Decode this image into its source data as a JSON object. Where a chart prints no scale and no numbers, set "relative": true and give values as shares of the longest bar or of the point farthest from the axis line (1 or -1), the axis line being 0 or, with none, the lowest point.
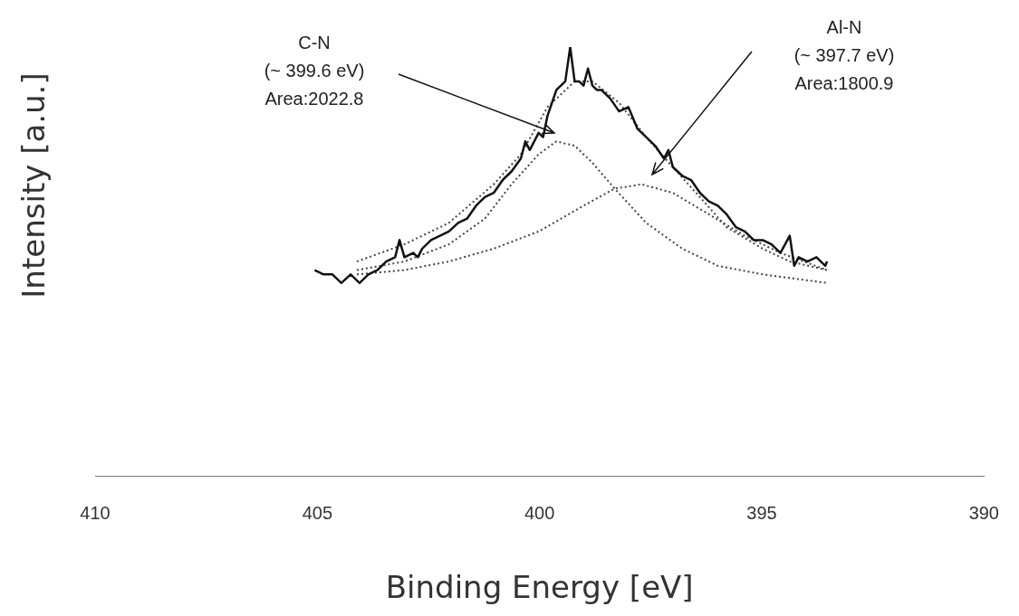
{
  "chart_data": {
    "type": "line",
    "relative": true,
    "xlabel": "Binding Energy [eV]",
    "ylabel": "Intensity [a.u.]",
    "xlim": [
      410,
      390
    ],
    "xticks": [
      410,
      405,
      400,
      395,
      390
    ],
    "grid": false,
    "legend": false,
    "annotations": [
      "C-N\n(~ 399.6 eV)\nArea:2022.8",
      "Al-N\n(~ 397.7 eV)\nArea:1800.9"
    ],
    "series": [
      {
        "color": "#111111",
        "line_style": "solid",
        "x": [
          405.06,
          404.86,
          404.66,
          404.46,
          404.25,
          404.05,
          403.85,
          403.65,
          403.45,
          403.25,
          403.15,
          403.04,
          402.84,
          402.74,
          402.64,
          402.44,
          402.24,
          402.04,
          401.83,
          401.63,
          401.43,
          401.23,
          401.03,
          400.83,
          400.63,
          400.42,
          400.32,
          400.22,
          400.02,
          399.92,
          399.82,
          399.72,
          399.62,
          399.52,
          399.42,
          399.31,
          399.21,
          399.11,
          399.01,
          398.91,
          398.81,
          398.71,
          398.61,
          398.41,
          398.21,
          398.0,
          397.8,
          397.6,
          397.4,
          397.2,
          397.1,
          397.0,
          396.79,
          396.59,
          396.39,
          396.19,
          395.99,
          395.79,
          395.58,
          395.38,
          395.18,
          394.98,
          394.78,
          394.58,
          394.37,
          394.27,
          394.17,
          393.97,
          393.77,
          393.57,
          393.53
        ],
        "values": [
          0.48,
          0.47,
          0.47,
          0.45,
          0.47,
          0.45,
          0.47,
          0.48,
          0.5,
          0.51,
          0.55,
          0.51,
          0.52,
          0.51,
          0.53,
          0.55,
          0.56,
          0.57,
          0.59,
          0.6,
          0.63,
          0.65,
          0.66,
          0.69,
          0.71,
          0.74,
          0.78,
          0.76,
          0.8,
          0.79,
          0.84,
          0.87,
          0.9,
          0.91,
          0.92,
          1,
          0.92,
          0.92,
          0.91,
          0.95,
          0.91,
          0.9,
          0.9,
          0.88,
          0.85,
          0.86,
          0.81,
          0.79,
          0.77,
          0.74,
          0.76,
          0.72,
          0.7,
          0.69,
          0.66,
          0.64,
          0.63,
          0.61,
          0.58,
          0.57,
          0.55,
          0.55,
          0.54,
          0.52,
          0.56,
          0.49,
          0.51,
          0.5,
          0.51,
          0.49,
          0.5
        ]
      },
      {
        "color": "#444444",
        "line_style": "dotted",
        "x": [
          404.11,
          403.04,
          402.04,
          401.03,
          400.42,
          399.82,
          399.21,
          398.81,
          398.21,
          397.6,
          397.0,
          396.39,
          395.79,
          394.98,
          394.37,
          393.53
        ],
        "values": [
          0.5,
          0.54,
          0.59,
          0.68,
          0.75,
          0.86,
          0.92,
          0.92,
          0.87,
          0.79,
          0.72,
          0.65,
          0.58,
          0.53,
          0.5,
          0.48
        ]
      },
      {
        "color": "#444444",
        "line_style": "dotted",
        "x": [
          404.11,
          403.04,
          402.04,
          401.23,
          400.63,
          400.02,
          399.62,
          399.21,
          398.81,
          398.31,
          397.6,
          396.79,
          395.99,
          394.98,
          393.53
        ],
        "values": [
          0.48,
          0.5,
          0.54,
          0.6,
          0.68,
          0.75,
          0.78,
          0.77,
          0.73,
          0.67,
          0.59,
          0.53,
          0.49,
          0.47,
          0.45
        ]
      },
      {
        "color": "#444444",
        "line_style": "dotted",
        "x": [
          404.11,
          403.04,
          402.04,
          401.03,
          400.02,
          399.01,
          398.31,
          397.7,
          397.0,
          396.19,
          395.38,
          394.58,
          393.53
        ],
        "values": [
          0.47,
          0.48,
          0.5,
          0.53,
          0.57,
          0.63,
          0.67,
          0.68,
          0.66,
          0.61,
          0.56,
          0.52,
          0.48
        ]
      }
    ]
  }
}
